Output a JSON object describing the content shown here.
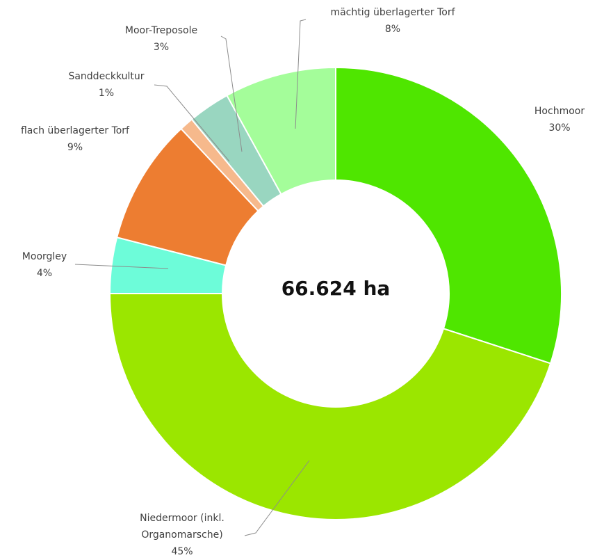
{
  "chart_data": {
    "type": "donut",
    "center_label": "66.624 ha",
    "categories": [
      "Hochmoor",
      "Niedermoor (inkl. Organomarsche)",
      "Moorgley",
      "flach überlagerter Torf",
      "Sanddeckkultur",
      "Moor-Treposole",
      "mächtig überlagerter Torf"
    ],
    "values": [
      30,
      45,
      4,
      9,
      1,
      3,
      8
    ],
    "value_labels": [
      "30%",
      "45%",
      "4%",
      "9%",
      "1%",
      "3%",
      "8%"
    ],
    "colors": [
      "#4fe600",
      "#9be600",
      "#6dfcd9",
      "#ed7d31",
      "#f6b98c",
      "#99d6c0",
      "#a4fd9a"
    ]
  }
}
